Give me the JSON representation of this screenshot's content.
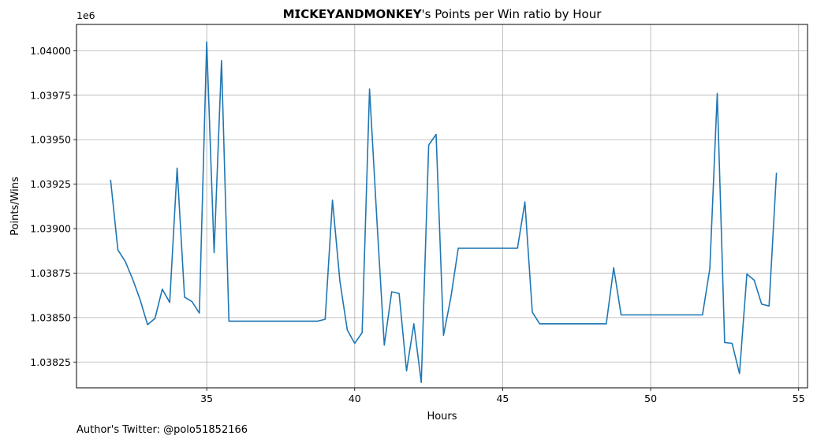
{
  "chart_data": {
    "type": "line",
    "title": "𝗠𝗜𝗖𝗞𝗘𝗬𝗔𝗡𝗗𝗠𝗢𝗡𝗞𝗘𝗬's Points per Win ratio by Hour",
    "xlabel": "Hours",
    "ylabel": "Points/Wins",
    "y_offset_label": "1e6",
    "grid": true,
    "xlim": [
      30.6,
      55.3
    ],
    "ylim": [
      1038105,
      1040148
    ],
    "x_ticks": [
      35,
      40,
      45,
      50,
      55
    ],
    "y_ticks": [
      1038250,
      1038500,
      1038750,
      1039000,
      1039250,
      1039500,
      1039750,
      1040000
    ],
    "y_tick_labels": [
      "1.03825",
      "1.03850",
      "1.03875",
      "1.03900",
      "1.03925",
      "1.03950",
      "1.03975",
      "1.04000"
    ],
    "color": "#1f77b4",
    "series": [
      {
        "x": [
          31.75,
          32.0,
          32.25,
          32.5,
          32.75,
          33.0,
          33.25,
          33.5,
          33.75,
          34.0,
          34.25,
          34.5,
          34.75,
          35.0,
          35.25,
          35.5,
          35.75,
          36.0,
          37.0,
          38.0,
          38.75,
          39.0,
          39.25,
          39.5,
          39.75,
          40.0,
          40.25,
          40.5,
          40.75,
          41.0,
          41.25,
          41.5,
          41.75,
          42.0,
          42.25,
          42.5,
          42.75,
          43.0,
          43.25,
          43.5,
          44.5,
          45.5,
          45.75,
          46.0,
          46.25,
          47.5,
          48.5,
          48.75,
          49.0,
          50.0,
          51.0,
          51.75,
          52.0,
          52.25,
          52.5,
          52.75,
          53.0,
          53.25,
          53.5,
          53.75,
          54.0,
          54.25
        ],
        "y": [
          1039275,
          1038880,
          1038815,
          1038715,
          1038600,
          1038460,
          1038495,
          1038660,
          1038585,
          1039340,
          1038615,
          1038590,
          1038525,
          1040050,
          1038865,
          1039945,
          1038480,
          1038480,
          1038480,
          1038480,
          1038480,
          1038490,
          1039160,
          1038705,
          1038430,
          1038355,
          1038415,
          1039785,
          1039050,
          1038345,
          1038645,
          1038635,
          1038200,
          1038465,
          1038135,
          1039470,
          1039530,
          1038400,
          1038615,
          1038890,
          1038890,
          1038890,
          1039150,
          1038530,
          1038465,
          1038465,
          1038465,
          1038780,
          1038515,
          1038515,
          1038515,
          1038515,
          1038775,
          1039760,
          1038360,
          1038355,
          1038185,
          1038745,
          1038710,
          1038575,
          1038565,
          1039315
        ]
      }
    ]
  },
  "footer": {
    "text": "Author's Twitter: @polo51852166"
  }
}
